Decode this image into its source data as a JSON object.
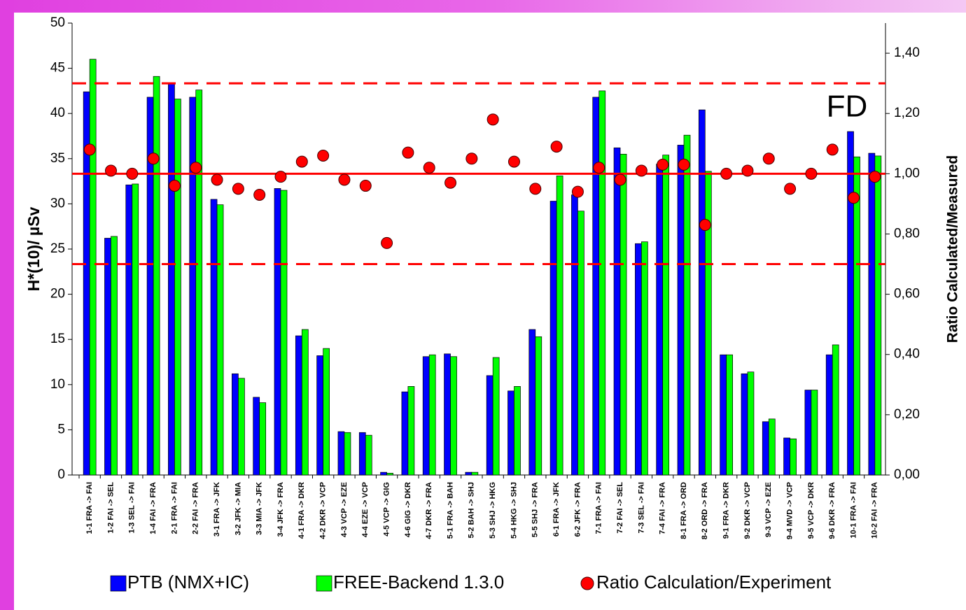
{
  "chart_data": {
    "type": "bar",
    "y_label": "H*(10)/ µSv",
    "y2_label": "Ratio Calculated/Measured",
    "annotation": "FD",
    "categories": [
      "1-1 FRA -> FAI",
      "1-2 FAI -> SEL",
      "1-3 SEL -> FAI",
      "1-4 FAI -> FRA",
      "2-1 FRA -> FAI",
      "2-2 FAI -> FRA",
      "3-1 FRA -> JFK",
      "3-2 JFK -> MIA",
      "3-3 MIA -> JFK",
      "3-4 JFK -> FRA",
      "4-1 FRA -> DKR",
      "4-2 DKR -> VCP",
      "4-3 VCP -> EZE",
      "4-4 EZE -> VCP",
      "4-5 VCP -> GIG",
      "4-6 GIG -> DKR",
      "4-7 DKR -> FRA",
      "5-1 FRA -> BAH",
      "5-2 BAH -> SHJ",
      "5-3 SHJ -> HKG",
      "5-4 HKG -> SHJ",
      "5-5 SHJ -> FRA",
      "6-1 FRA -> JFK",
      "6-2 JFK -> FRA",
      "7-1 FRA -> FAI",
      "7-2 FAI -> SEL",
      "7-3 SEL -> FAI",
      "7-4 FAI -> FRA",
      "8-1 FRA -> ORD",
      "8-2 ORD -> FRA",
      "9-1 FRA -> DKR",
      "9-2 DKR -> VCP",
      "9-3 VCP -> EZE",
      "9-4 MVD -> VCP",
      "9-5 VCP -> DKR",
      "9-6 DKR -> FRA",
      "10-1 FRA -> FAI",
      "10-2 FAI -> FRA"
    ],
    "series": [
      {
        "name": "PTB (NMX+IC)",
        "color": "#0000ff",
        "type": "bar",
        "values": [
          42.4,
          26.2,
          32.1,
          41.8,
          43.3,
          41.8,
          30.5,
          11.2,
          8.6,
          31.7,
          15.4,
          13.2,
          4.8,
          4.7,
          0.3,
          9.2,
          13.1,
          13.4,
          0.3,
          11.0,
          9.3,
          16.1,
          30.3,
          31.0,
          41.8,
          36.2,
          25.6,
          34.4,
          36.5,
          40.4,
          13.3,
          11.2,
          5.9,
          4.1,
          9.4,
          13.3,
          38.0,
          35.6
        ]
      },
      {
        "name": "FREE-Backend 1.3.0",
        "color": "#00ff00",
        "type": "bar",
        "values": [
          46.0,
          26.4,
          32.2,
          44.1,
          41.6,
          42.6,
          29.9,
          10.7,
          8.0,
          31.5,
          16.1,
          14.0,
          4.7,
          4.4,
          0.2,
          9.8,
          13.3,
          13.1,
          0.3,
          13.0,
          9.8,
          15.3,
          33.1,
          29.2,
          42.5,
          35.5,
          25.8,
          35.4,
          37.6,
          33.6,
          13.3,
          11.4,
          6.2,
          4.0,
          9.4,
          14.4,
          35.2,
          35.3
        ]
      },
      {
        "name": "Ratio Calculation/Experiment",
        "color": "#ff0000",
        "type": "scatter",
        "axis": "y2",
        "values": [
          1.08,
          1.01,
          1.0,
          1.05,
          0.96,
          1.02,
          0.98,
          0.95,
          0.93,
          0.99,
          1.04,
          1.06,
          0.98,
          0.96,
          0.77,
          1.07,
          1.02,
          0.97,
          1.05,
          1.18,
          1.04,
          0.95,
          1.09,
          0.94,
          1.02,
          0.98,
          1.01,
          1.03,
          1.03,
          0.83,
          1.0,
          1.01,
          1.05,
          0.95,
          1.0,
          1.08,
          0.92,
          0.99
        ]
      }
    ],
    "reference_lines": [
      {
        "value": 1.3,
        "axis": "y2",
        "color": "#ff0000",
        "dashed": true
      },
      {
        "value": 1.0,
        "axis": "y2",
        "color": "#ff0000",
        "dashed": false
      },
      {
        "value": 0.7,
        "axis": "y2",
        "color": "#ff0000",
        "dashed": true
      }
    ],
    "ylim": [
      0,
      50
    ],
    "yticks": [
      0,
      5,
      10,
      15,
      20,
      25,
      30,
      35,
      40,
      45,
      50
    ],
    "y2lim": [
      0,
      1.5
    ],
    "y2ticks": [
      {
        "value": 0,
        "label": "0,00"
      },
      {
        "value": 0.2,
        "label": "0,20"
      },
      {
        "value": 0.4,
        "label": "0,40"
      },
      {
        "value": 0.6,
        "label": "0,60"
      },
      {
        "value": 0.8,
        "label": "0,80"
      },
      {
        "value": 1.0,
        "label": "1,00"
      },
      {
        "value": 1.2,
        "label": "1,20"
      },
      {
        "value": 1.4,
        "label": "1,40"
      }
    ],
    "grid": false,
    "legend": "bottom"
  }
}
